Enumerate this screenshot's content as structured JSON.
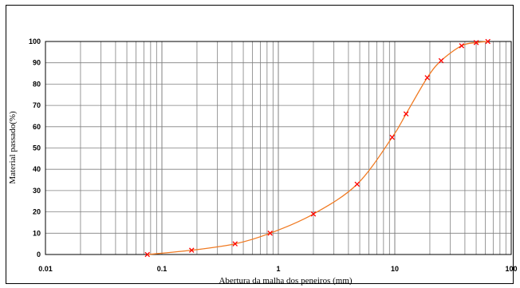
{
  "chart_data": {
    "type": "line",
    "xscale": "log",
    "xlim": [
      0.01,
      100
    ],
    "ylim": [
      0,
      100
    ],
    "grid": true,
    "xlabel": "Abertura da malha dos peneiros (mm)",
    "ylabel": "Material passado(%)",
    "xticks": [
      0.01,
      0.1,
      1,
      10,
      100
    ],
    "xtick_labels": [
      "0.01",
      "0.1",
      "1",
      "10",
      "100"
    ],
    "yticks": [
      0,
      10,
      20,
      30,
      40,
      50,
      60,
      70,
      80,
      90,
      100
    ],
    "ytick_labels": [
      "0",
      "10",
      "20",
      "30",
      "40",
      "50",
      "60",
      "70",
      "80",
      "90",
      "100"
    ],
    "series": [
      {
        "x": [
          0.075,
          0.18,
          0.425,
          0.85,
          2,
          4.75,
          9.5,
          12.5,
          19,
          25,
          37.5,
          50,
          63
        ],
        "y": [
          0,
          2,
          5,
          10,
          19,
          33,
          55,
          66,
          83,
          91,
          98,
          99.5,
          100
        ],
        "line_color": "#f07a22",
        "marker_color": "#ff0000",
        "marker": "x"
      }
    ]
  }
}
